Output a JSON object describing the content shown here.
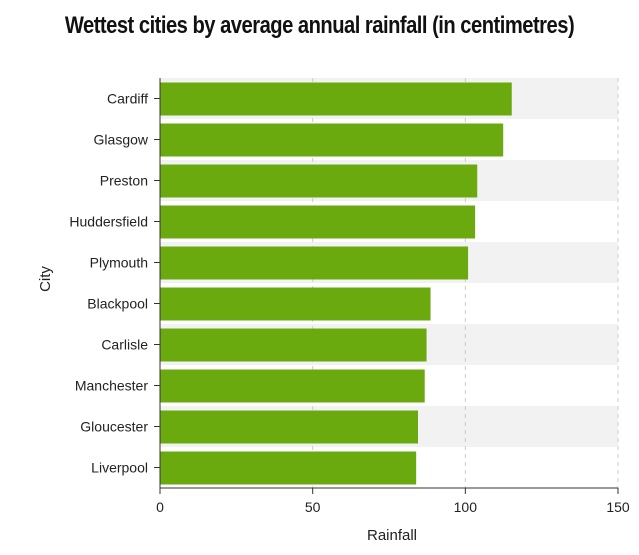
{
  "chart_data": {
    "type": "bar",
    "orientation": "horizontal",
    "title": "Wettest cities by average annual rainfall (in centimetres)",
    "xlabel": "Rainfall",
    "ylabel": "City",
    "xlim": [
      0,
      150
    ],
    "x_ticks": [
      0,
      50,
      100,
      150
    ],
    "grid": true,
    "categories": [
      "Cardiff",
      "Glasgow",
      "Preston",
      "Huddersfield",
      "Plymouth",
      "Blackpool",
      "Carlisle",
      "Manchester",
      "Gloucester",
      "Liverpool"
    ],
    "values": [
      115.2,
      112.4,
      103.9,
      103.2,
      100.9,
      88.6,
      87.3,
      86.7,
      84.5,
      83.9
    ],
    "colors": {
      "bar": "#6aaa0f",
      "band": "#f2f2f2",
      "grid": "#cccccc",
      "axis": "#333333",
      "text": "#222222"
    }
  }
}
